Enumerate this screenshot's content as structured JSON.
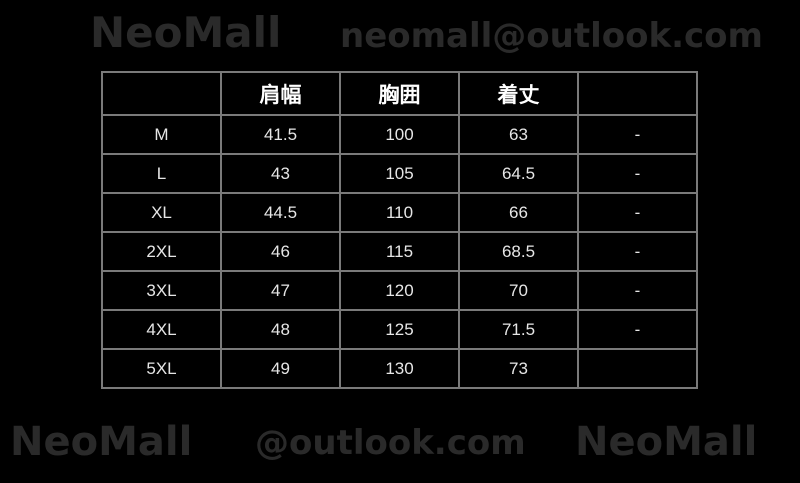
{
  "watermarks": [
    "NeoMall",
    "neomall@outlook.com",
    "NeoMall",
    "NeoMall",
    "@outlook.com"
  ],
  "table": {
    "headers": [
      "",
      "肩幅",
      "胸囲",
      "着丈",
      ""
    ],
    "rows": [
      [
        "M",
        "41.5",
        "100",
        "63",
        "-"
      ],
      [
        "L",
        "43",
        "105",
        "64.5",
        "-"
      ],
      [
        "XL",
        "44.5",
        "110",
        "66",
        "-"
      ],
      [
        "2XL",
        "46",
        "115",
        "68.5",
        "-"
      ],
      [
        "3XL",
        "47",
        "120",
        "70",
        "-"
      ],
      [
        "4XL",
        "48",
        "125",
        "71.5",
        "-"
      ],
      [
        "5XL",
        "49",
        "130",
        "73",
        ""
      ]
    ]
  }
}
